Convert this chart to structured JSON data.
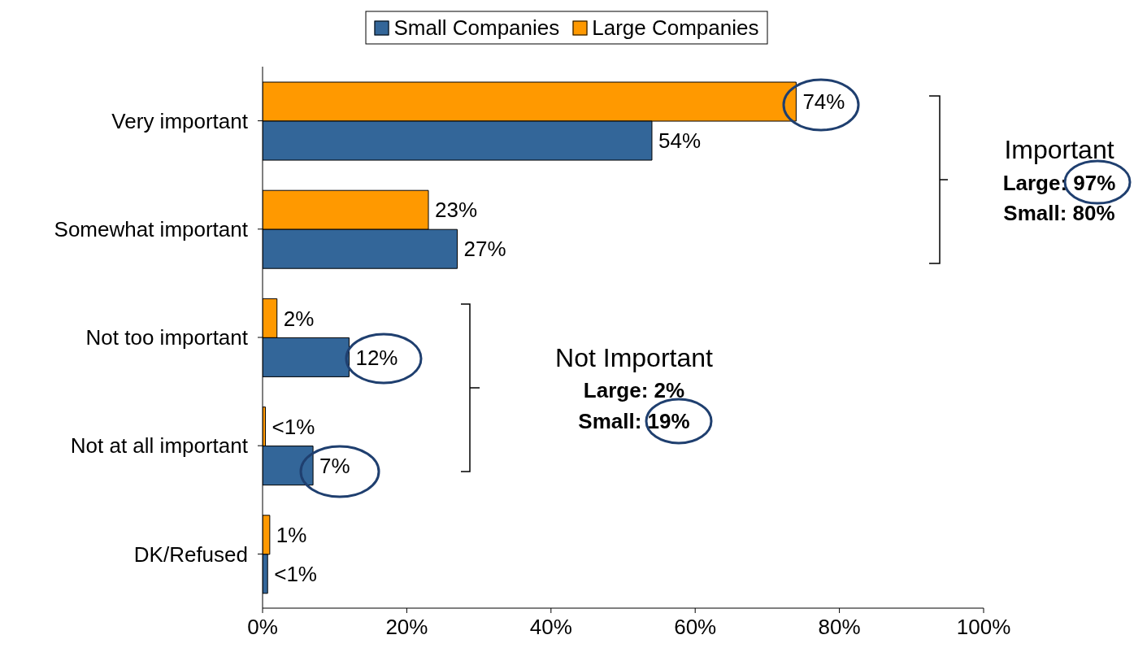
{
  "chart_data": {
    "type": "bar",
    "orientation": "horizontal",
    "categories": [
      "Very important",
      "Somewhat important",
      "Not too important",
      "Not at all important",
      "DK/Refused"
    ],
    "series": [
      {
        "name": "Small Companies",
        "color": "#336699",
        "values": [
          54,
          27,
          12,
          7,
          0.7
        ],
        "value_labels": [
          "54%",
          "27%",
          "12%",
          "7%",
          "<1%"
        ]
      },
      {
        "name": "Large Companies",
        "color": "#ff9900",
        "values": [
          74,
          23,
          2,
          0.4,
          1
        ],
        "value_labels": [
          "74%",
          "23%",
          "2%",
          "<1%",
          "1%"
        ]
      }
    ],
    "xlim": [
      0,
      100
    ],
    "xticks": [
      {
        "value": 0,
        "label": "0%"
      },
      {
        "value": 20,
        "label": "20%"
      },
      {
        "value": 40,
        "label": "40%"
      },
      {
        "value": 60,
        "label": "60%"
      },
      {
        "value": 80,
        "label": "80%"
      },
      {
        "value": 100,
        "label": "100%"
      }
    ],
    "grid": false,
    "legend": "top",
    "annotations": [
      "Important",
      "Large: 97%",
      "Small: 80%",
      "Not Important",
      "Large: 2%",
      "Small: 19%"
    ]
  }
}
